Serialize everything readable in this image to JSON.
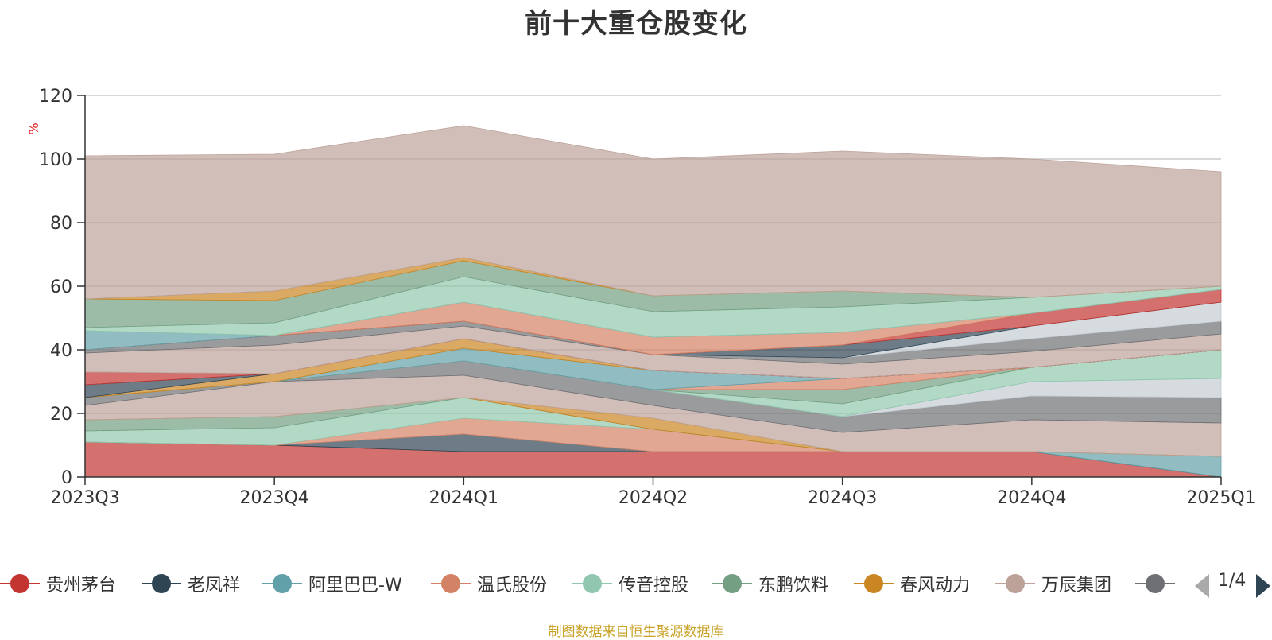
{
  "title": "前十大重仓股变化",
  "source_note": "制图数据来自恒生聚源数据库",
  "legend_page": "1/4",
  "chart_data": {
    "type": "area",
    "stacked": true,
    "title": "前十大重仓股变化",
    "ylabel": "%",
    "ylim": [
      0,
      120
    ],
    "yticks": [
      0,
      20,
      40,
      60,
      80,
      100,
      120
    ],
    "grid": true,
    "legend_position": "bottom",
    "categories": [
      "2023Q3",
      "2023Q4",
      "2024Q1",
      "2024Q2",
      "2024Q3",
      "2024Q4",
      "2025Q1"
    ],
    "series": [
      {
        "name": "贵州茅台",
        "color": "#c23531",
        "values": [
          11,
          10,
          8,
          8,
          8,
          8,
          0
        ]
      },
      {
        "name": "老凤祥",
        "color": "#2f4554",
        "values": [
          0,
          0,
          5.5,
          0,
          0,
          0,
          0
        ]
      },
      {
        "name": "阿里巴巴-W",
        "color": "#61a0a8",
        "values": [
          0,
          0,
          0,
          0,
          0,
          0,
          6.5
        ]
      },
      {
        "name": "温氏股份",
        "color": "#d48265",
        "values": [
          0,
          0,
          5,
          7,
          0,
          0,
          0
        ]
      },
      {
        "name": "传音控股",
        "color": "#91c7ae",
        "values": [
          3.5,
          5.5,
          6.5,
          0,
          0,
          0,
          0
        ]
      },
      {
        "name": "东鹏饮料",
        "color": "#749f83",
        "values": [
          3.5,
          3.5,
          0,
          0,
          0,
          0,
          0
        ]
      },
      {
        "name": "春风动力",
        "color": "#ca8622",
        "values": [
          0,
          0,
          0,
          3.5,
          0,
          0,
          0
        ]
      },
      {
        "name": "万辰集团",
        "color": "#bda29a",
        "values": [
          4.5,
          11,
          7,
          4,
          6,
          10,
          10.5
        ]
      },
      {
        "name": "",
        "color": "#6e7074",
        "values": [
          2.5,
          0,
          4.5,
          5,
          5,
          7.5,
          8
        ]
      },
      {
        "name": "",
        "color": "#c4ccd3",
        "values": [
          0,
          0,
          0,
          0,
          0,
          4.5,
          6
        ]
      },
      {
        "name": "",
        "color": "#91c7ae",
        "values": [
          0,
          0,
          0,
          0,
          4,
          4.5,
          9
        ]
      },
      {
        "name": "",
        "color": "#749f83",
        "values": [
          0,
          0,
          0,
          0,
          4.5,
          0,
          0
        ]
      },
      {
        "name": "",
        "color": "#d48265",
        "values": [
          0,
          0,
          0,
          0,
          3.5,
          0,
          0
        ]
      },
      {
        "name": "",
        "color": "#61a0a8",
        "values": [
          0,
          0,
          4,
          6,
          0,
          0,
          0
        ]
      },
      {
        "name": "",
        "color": "#ca8622",
        "values": [
          0,
          2.5,
          3,
          0,
          0,
          0,
          0
        ]
      },
      {
        "name": "",
        "color": "#2f4554",
        "values": [
          4,
          0,
          0,
          0,
          0,
          0,
          0
        ]
      },
      {
        "name": "",
        "color": "#c23531",
        "values": [
          4,
          0,
          0,
          0,
          0,
          0,
          0
        ]
      },
      {
        "name": "",
        "color": "#bda29a",
        "values": [
          6,
          9,
          4,
          5,
          4.5,
          5,
          5
        ]
      },
      {
        "name": "",
        "color": "#6e7074",
        "values": [
          1,
          3,
          1.5,
          0,
          2,
          4,
          4
        ]
      },
      {
        "name": "",
        "color": "#c4ccd3",
        "values": [
          0,
          0,
          0,
          0,
          0,
          4,
          6
        ]
      },
      {
        "name": "",
        "color": "#2f4554",
        "values": [
          0,
          0,
          0,
          0,
          4,
          0,
          0
        ]
      },
      {
        "name": "",
        "color": "#c23531",
        "values": [
          0,
          0,
          0,
          0,
          0,
          4,
          4
        ]
      },
      {
        "name": "",
        "color": "#d48265",
        "values": [
          0,
          0,
          6,
          5.5,
          4,
          0,
          0
        ]
      },
      {
        "name": "",
        "color": "#61a0a8",
        "values": [
          6,
          0,
          0,
          0,
          0,
          0,
          0
        ]
      },
      {
        "name": "",
        "color": "#91c7ae",
        "values": [
          1,
          4,
          8,
          8,
          8,
          5,
          1
        ]
      },
      {
        "name": "",
        "color": "#749f83",
        "values": [
          9,
          7,
          5,
          5,
          5,
          0,
          0
        ]
      },
      {
        "name": "",
        "color": "#ca8622",
        "values": [
          0,
          3,
          1,
          0,
          0,
          0,
          0
        ]
      },
      {
        "name": "",
        "color": "#bda29a",
        "values": [
          45,
          43,
          41.5,
          43,
          44,
          43.5,
          36
        ]
      }
    ]
  },
  "legend": {
    "items": [
      {
        "name": "贵州茅台",
        "color": "#c23531"
      },
      {
        "name": "老凤祥",
        "color": "#2f4554"
      },
      {
        "name": "阿里巴巴-W",
        "color": "#61a0a8"
      },
      {
        "name": "温氏股份",
        "color": "#d48265"
      },
      {
        "name": "传音控股",
        "color": "#91c7ae"
      },
      {
        "name": "东鹏饮料",
        "color": "#749f83"
      },
      {
        "name": "春风动力",
        "color": "#ca8622"
      },
      {
        "name": "万辰集团",
        "color": "#bda29a"
      },
      {
        "name": "",
        "color": "#6e7074"
      }
    ]
  }
}
